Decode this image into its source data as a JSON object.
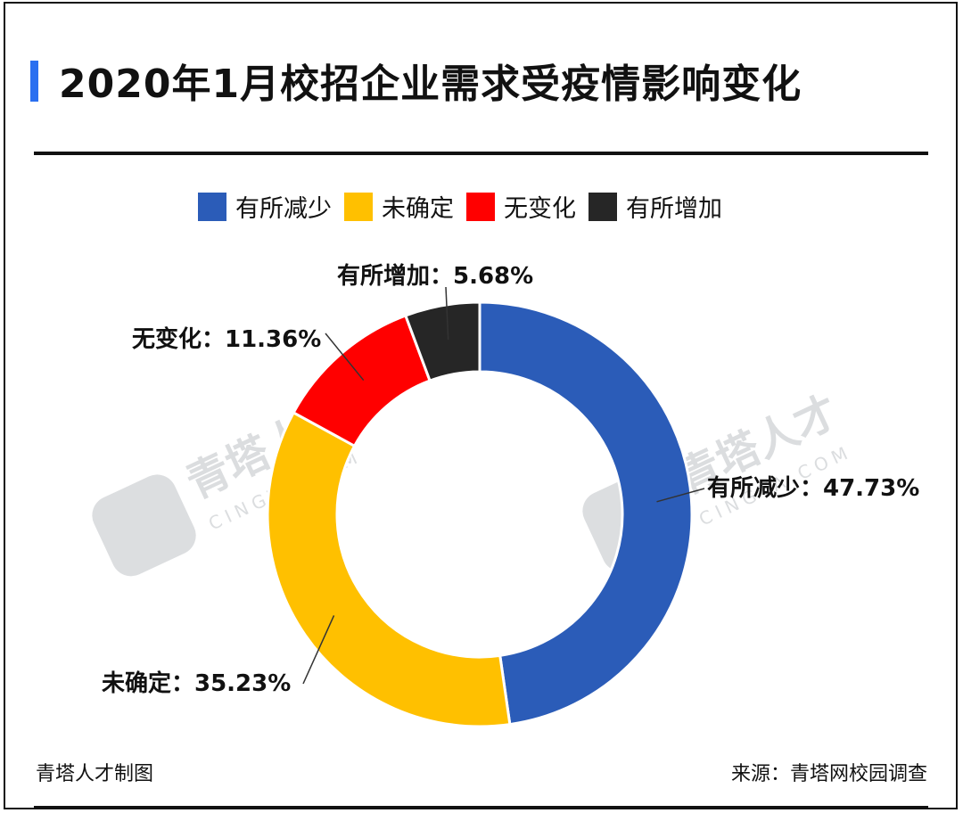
{
  "chart_data": {
    "type": "pie",
    "title": "2020年1月校招企业需求受疫情影响变化",
    "categories": [
      "有所减少",
      "未确定",
      "无变化",
      "有所增加"
    ],
    "values": [
      47.73,
      35.23,
      11.36,
      5.68
    ],
    "colors": [
      "#2b5cb8",
      "#ffc000",
      "#ff0000",
      "#262626"
    ],
    "data_labels": [
      "有所减少：47.73%",
      "未确定：35.23%",
      "无变化：11.36%",
      "有所增加：5.68%"
    ],
    "legend_placement": "top"
  },
  "watermark": {
    "text": "青塔人才",
    "sub": "CINGTA.COM"
  },
  "footer": {
    "left": "青塔人才制图",
    "right": "来源：青塔网校园调查"
  }
}
